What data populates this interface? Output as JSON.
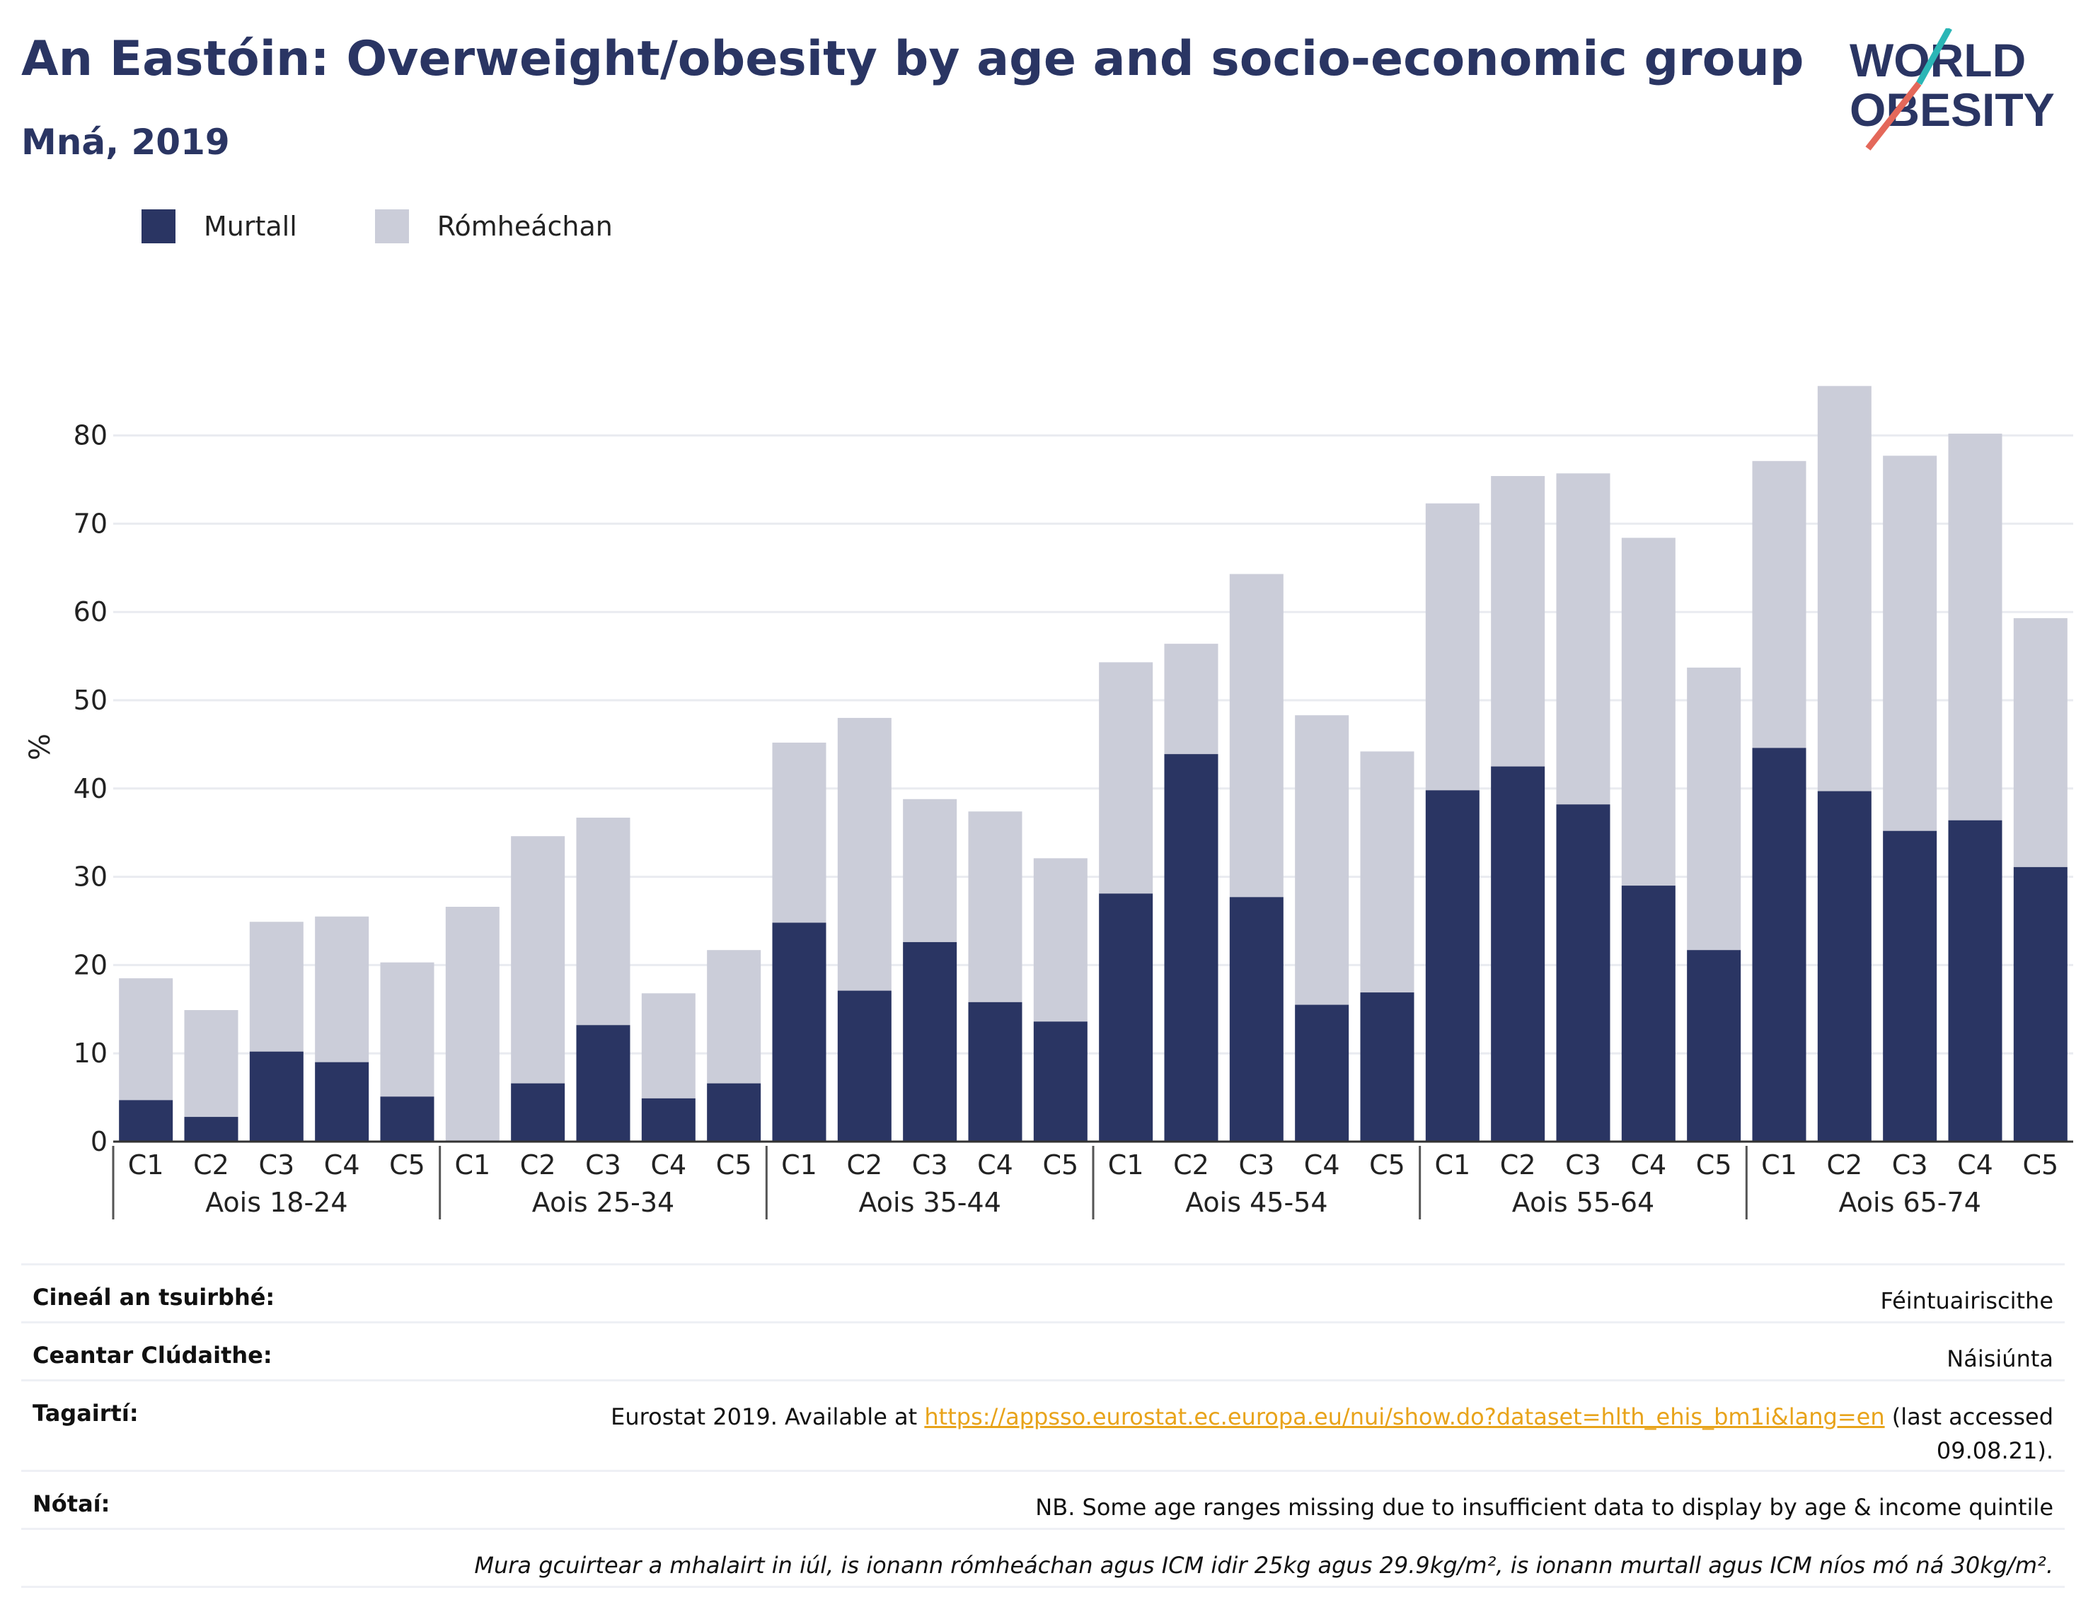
{
  "header": {
    "title": "An Eastóin: Overweight/obesity by age and socio-economic group",
    "subtitle": "Mná, 2019"
  },
  "logo": {
    "line1": "WORLD",
    "line2": "OBESITY"
  },
  "legend": [
    {
      "label": "Murtall",
      "color": "#2a3563"
    },
    {
      "label": "Rómheáchan",
      "color": "#cbcdd9"
    }
  ],
  "chart_data": {
    "type": "bar",
    "stacked": true,
    "ylabel": "%",
    "ylim": [
      0,
      88
    ],
    "yticks": [
      0,
      10,
      20,
      30,
      40,
      50,
      60,
      70,
      80
    ],
    "grid": true,
    "groups": [
      "Aois 18-24",
      "Aois 25-34",
      "Aois 35-44",
      "Aois 45-54",
      "Aois 55-64",
      "Aois 65-74"
    ],
    "categories": [
      "C1",
      "C2",
      "C3",
      "C4",
      "C5"
    ],
    "series": [
      {
        "name": "Murtall",
        "color": "#2a3563",
        "values": [
          [
            4.7,
            2.8,
            10.2,
            9.0,
            5.1
          ],
          [
            0,
            6.6,
            13.2,
            4.9,
            6.6
          ],
          [
            24.8,
            17.1,
            22.6,
            15.8,
            13.6
          ],
          [
            28.1,
            43.9,
            27.7,
            15.5,
            16.9
          ],
          [
            39.8,
            42.5,
            38.2,
            29.0,
            21.7
          ],
          [
            44.6,
            39.7,
            35.2,
            36.4,
            31.1
          ]
        ]
      },
      {
        "name": "Rómheáchan",
        "color": "#cbcdd9",
        "values": [
          [
            13.8,
            12.1,
            14.7,
            16.5,
            15.2
          ],
          [
            26.6,
            28.0,
            23.5,
            11.9,
            15.1
          ],
          [
            20.4,
            30.9,
            16.2,
            21.6,
            18.5
          ],
          [
            26.2,
            12.5,
            36.6,
            32.8,
            27.3
          ],
          [
            32.5,
            32.9,
            37.5,
            39.4,
            32.0
          ],
          [
            32.5,
            45.9,
            42.5,
            43.8,
            28.2
          ]
        ]
      }
    ]
  },
  "meta": {
    "survey_type_label": "Cineál an tsuirbhé:",
    "survey_type_value": "Féintuairiscithe",
    "coverage_label": "Ceantar Clúdaithe:",
    "coverage_value": "Náisiúnta",
    "references_label": "Tagairtí:",
    "references_prefix": "Eurostat 2019. Available at ",
    "references_link": "https://appsso.eurostat.ec.europa.eu/nui/show.do?dataset=hlth_ehis_bm1i&lang=en",
    "references_suffix_1": " (last accessed",
    "references_suffix_2": "09.08.21).",
    "notes_label": "Nótaí:",
    "notes_value": "NB. Some age ranges missing due to insufficient data to display by age & income quintile",
    "definition": "Mura gcuirtear a mhalairt in iúl, is ionann rómheáchan agus ICM idir 25kg agus 29.9kg/m², is ionann murtall agus ICM níos mó ná 30kg/m²."
  }
}
